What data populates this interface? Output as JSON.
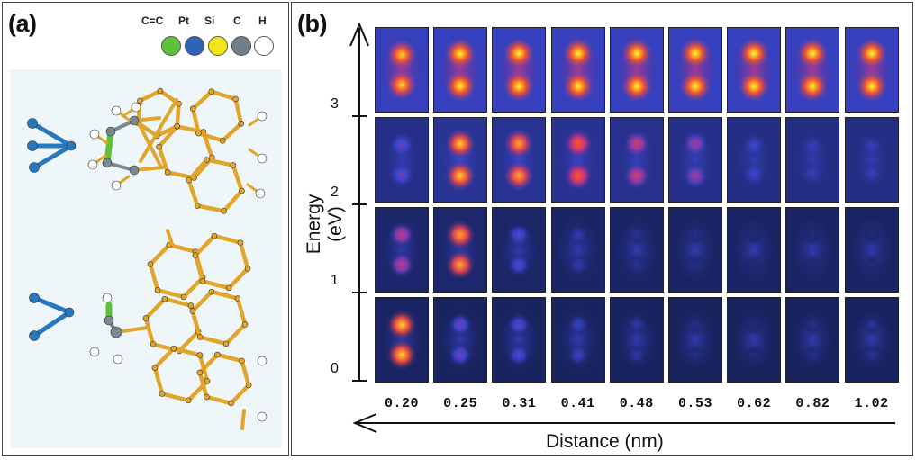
{
  "panel_a": {
    "label": "(a)",
    "legend": [
      {
        "label": "C=C",
        "color": "#5cc23a"
      },
      {
        "label": "Pt",
        "color": "#2f63b8"
      },
      {
        "label": "Si",
        "color": "#f3e41c"
      },
      {
        "label": "C",
        "color": "#6f8187"
      },
      {
        "label": "H",
        "color": "#ffffff"
      }
    ],
    "atom_colors": {
      "si_framework": "#e2a52b",
      "pt_tip": "#2878c0",
      "c_atom": "#7b8a90",
      "h_atom": "#ffffff",
      "cc_bond": "#5cc23a"
    }
  },
  "panel_b": {
    "label": "(b)",
    "y_axis_title": "Energy (eV)",
    "x_axis_title": "Distance (nm)",
    "y_ticks": [
      "0",
      "1",
      "2",
      "3"
    ],
    "distances": [
      "0.20",
      "0.25",
      "0.31",
      "0.41",
      "0.48",
      "0.53",
      "0.62",
      "0.82",
      "1.02"
    ],
    "energy_rows": [
      {
        "energy": "3",
        "intensity": [
          0.95,
          1.0,
          1.0,
          1.0,
          1.0,
          1.0,
          1.0,
          1.0,
          1.0
        ],
        "separation": [
          0.42,
          0.45,
          0.46,
          0.46,
          0.46,
          0.46,
          0.46,
          0.46,
          0.46
        ],
        "background": 0.55
      },
      {
        "energy": "2",
        "intensity": [
          0.45,
          0.95,
          0.9,
          0.8,
          0.65,
          0.55,
          0.35,
          0.3,
          0.3
        ],
        "separation": [
          0.42,
          0.45,
          0.45,
          0.45,
          0.45,
          0.45,
          0.4,
          0.38,
          0.38
        ],
        "background": 0.35
      },
      {
        "energy": "1",
        "intensity": [
          0.6,
          0.9,
          0.4,
          0.25,
          0.18,
          0.15,
          0.12,
          0.12,
          0.12
        ],
        "separation": [
          0.42,
          0.42,
          0.42,
          0.42,
          0.42,
          0.42,
          0.42,
          0.42,
          0.42
        ],
        "background": 0.15
      },
      {
        "energy": "0",
        "intensity": [
          0.95,
          0.45,
          0.4,
          0.3,
          0.22,
          0.15,
          0.12,
          0.15,
          0.18
        ],
        "separation": [
          0.42,
          0.42,
          0.42,
          0.42,
          0.42,
          0.42,
          0.42,
          0.42,
          0.42
        ],
        "background": 0.1
      }
    ]
  }
}
